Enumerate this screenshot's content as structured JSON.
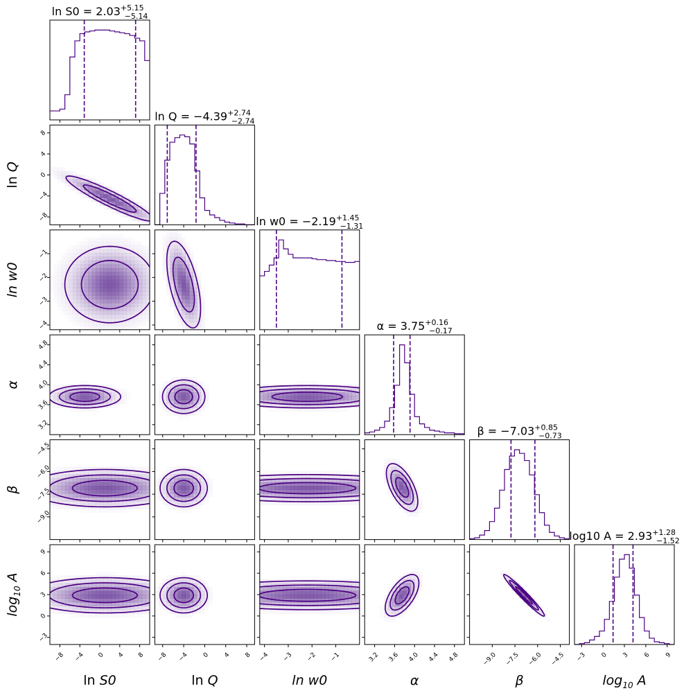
{
  "chart_data": {
    "type": "corner",
    "title": "",
    "colors": {
      "line": "#4b0082",
      "fill": "#6a3d9a"
    },
    "parameters": [
      {
        "id": "lnS0",
        "label_main": "ln ",
        "label_italic": "S0",
        "label_sub": "",
        "title_lhs": "ln S0 = 2.03",
        "title_plus": "+5.15",
        "title_minus": "−5.14",
        "range": [
          -10,
          10
        ],
        "ticks": [
          -8,
          -4,
          0,
          4,
          8
        ],
        "tick_labels": [
          "−8",
          "−4",
          "0",
          "4",
          "8"
        ],
        "median": 2.03,
        "q_lo": -3.11,
        "q_hi": 7.18,
        "hist_edges": [
          -10,
          -9,
          -8,
          -7,
          -6,
          -5,
          -4,
          -3,
          -2,
          -1,
          0,
          1,
          2,
          3,
          4,
          5,
          6,
          7,
          8,
          9,
          10
        ],
        "hist_counts": [
          0.1,
          0.1,
          0.12,
          0.28,
          0.7,
          0.88,
          0.96,
          0.98,
          0.99,
          1.0,
          1.0,
          1.0,
          0.99,
          0.98,
          0.97,
          0.96,
          0.94,
          0.91,
          0.88,
          0.66
        ]
      },
      {
        "id": "lnQ",
        "label_main": "ln ",
        "label_italic": "Q",
        "label_sub": "",
        "title_lhs": "ln Q = −4.39",
        "title_plus": "+2.74",
        "title_minus": "−2.74",
        "range": [
          -9.5,
          9.5
        ],
        "ticks": [
          -8,
          -4,
          0,
          4,
          8
        ],
        "tick_labels": [
          "−8",
          "−4",
          "0",
          "4",
          "8"
        ],
        "median": -4.39,
        "q_lo": -7.13,
        "q_hi": -1.65,
        "hist_edges": [
          -9.5,
          -8.55,
          -7.6,
          -6.65,
          -5.7,
          -4.75,
          -3.8,
          -2.85,
          -1.9,
          -0.95,
          0,
          0.95,
          1.9,
          2.85,
          3.8,
          4.75,
          5.75,
          6.65,
          7.6,
          8.55,
          9.5
        ],
        "hist_counts": [
          0.0,
          0.35,
          0.72,
          0.92,
          0.97,
          1.0,
          0.98,
          0.9,
          0.6,
          0.3,
          0.16,
          0.11,
          0.08,
          0.05,
          0.03,
          0.02,
          0.01,
          0.01,
          0.0,
          0.0
        ]
      },
      {
        "id": "lnw0",
        "label_main": "",
        "label_italic": "ln w0",
        "label_sub": "",
        "title_lhs": "ln w0 = −2.19",
        "title_plus": "+1.45",
        "title_minus": "−1.31",
        "range": [
          -4.2,
          0.0
        ],
        "ticks": [
          -4,
          -3,
          -2,
          -1
        ],
        "tick_labels": [
          "−4",
          "−3",
          "−2",
          "−1"
        ],
        "median": -2.19,
        "q_lo": -3.5,
        "q_hi": -0.74,
        "hist_edges": [
          -4.2,
          -4.0,
          -3.8,
          -3.6,
          -3.4,
          -3.2,
          -3.0,
          -2.8,
          -2.6,
          -2.4,
          -2.2,
          -2.0,
          -1.8,
          -1.6,
          -1.4,
          -1.2,
          -1.0,
          -0.8,
          -0.6,
          -0.4,
          -0.2,
          0.0
        ],
        "hist_counts": [
          0.6,
          0.65,
          0.72,
          0.8,
          1.0,
          0.9,
          0.84,
          0.8,
          0.8,
          0.8,
          0.8,
          0.79,
          0.78,
          0.78,
          0.77,
          0.77,
          0.76,
          0.76,
          0.75,
          0.75,
          0.76
        ]
      },
      {
        "id": "alpha",
        "label_main": "",
        "label_italic": "α",
        "label_sub": "",
        "title_lhs": "α = 3.75",
        "title_plus": "+0.16",
        "title_minus": "−0.17",
        "range": [
          3.0,
          5.0
        ],
        "ticks": [
          3.2,
          3.6,
          4.0,
          4.4,
          4.8
        ],
        "tick_labels": [
          "3.2",
          "3.6",
          "4.0",
          "4.4",
          "4.8"
        ],
        "median": 3.75,
        "q_lo": 3.58,
        "q_hi": 3.91,
        "hist_edges": [
          3.0,
          3.1,
          3.2,
          3.3,
          3.4,
          3.5,
          3.6,
          3.7,
          3.8,
          3.9,
          4.0,
          4.1,
          4.2,
          4.3,
          4.4,
          4.5,
          4.6,
          4.7,
          4.8,
          4.9,
          5.0
        ],
        "hist_counts": [
          0.02,
          0.03,
          0.05,
          0.08,
          0.15,
          0.3,
          0.55,
          1.0,
          0.8,
          0.45,
          0.2,
          0.12,
          0.08,
          0.05,
          0.04,
          0.03,
          0.02,
          0.02,
          0.01,
          0.01
        ]
      },
      {
        "id": "beta",
        "label_main": "",
        "label_italic": "β",
        "label_sub": "",
        "title_lhs": "β = −7.03",
        "title_plus": "+0.85",
        "title_minus": "−0.73",
        "range": [
          -10.5,
          -3.9
        ],
        "ticks": [
          -9.0,
          -7.5,
          -6.0,
          -4.5
        ],
        "tick_labels": [
          "−9.0",
          "−7.5",
          "−6.0",
          "−4.5"
        ],
        "median": -7.03,
        "q_lo": -7.76,
        "q_hi": -6.18,
        "hist_edges": [
          -10.5,
          -10.17,
          -9.84,
          -9.51,
          -9.18,
          -8.85,
          -8.52,
          -8.19,
          -7.86,
          -7.53,
          -7.2,
          -6.87,
          -6.54,
          -6.21,
          -5.88,
          -5.55,
          -5.22,
          -4.89,
          -4.56,
          -4.23,
          -3.9
        ],
        "hist_counts": [
          0.01,
          0.02,
          0.05,
          0.1,
          0.2,
          0.35,
          0.55,
          0.78,
          0.93,
          1.0,
          0.96,
          0.88,
          0.72,
          0.5,
          0.3,
          0.16,
          0.08,
          0.04,
          0.02,
          0.01
        ]
      },
      {
        "id": "log10A",
        "label_main": "",
        "label_italic": "log",
        "label_sub": "10",
        "label_after": " A",
        "title_lhs": "log10 A = 2.93",
        "title_plus": "+1.28",
        "title_minus": "−1.52",
        "range": [
          -4,
          10
        ],
        "ticks": [
          -3,
          0,
          3,
          6,
          9
        ],
        "tick_labels": [
          "−3",
          "0",
          "3",
          "6",
          "9"
        ],
        "median": 2.93,
        "q_lo": 1.41,
        "q_hi": 4.21,
        "hist_edges": [
          -4,
          -3.3,
          -2.6,
          -1.9,
          -1.2,
          -0.5,
          0.2,
          0.9,
          1.6,
          2.3,
          3.0,
          3.7,
          4.4,
          5.1,
          5.8,
          6.5,
          7.2,
          7.9,
          8.6,
          9.3,
          10
        ],
        "hist_counts": [
          0.0,
          0.01,
          0.02,
          0.05,
          0.09,
          0.15,
          0.28,
          0.48,
          0.75,
          0.95,
          1.0,
          0.85,
          0.55,
          0.3,
          0.15,
          0.07,
          0.03,
          0.02,
          0.01,
          0.0
        ]
      }
    ],
    "pairs": [
      {
        "row": 1,
        "col": 0,
        "mean": [
          2,
          -4.5
        ],
        "sd": [
          4.5,
          2.2
        ],
        "rho": -0.93,
        "levels": [
          0.5,
          0.85
        ]
      },
      {
        "row": 2,
        "col": 0,
        "mean": [
          2,
          -2.3
        ],
        "sd": [
          4.2,
          0.75
        ],
        "rho": 0.0,
        "levels": [
          0.6,
          0.9
        ]
      },
      {
        "row": 2,
        "col": 1,
        "mean": [
          -4,
          -2.3
        ],
        "sd": [
          1.5,
          0.85
        ],
        "rho": -0.55,
        "levels": [
          0.6,
          0.9
        ]
      },
      {
        "row": 3,
        "col": 0,
        "mean": [
          -3,
          3.76
        ],
        "sd": [
          3.2,
          0.1
        ],
        "rho": 0.0,
        "levels": [
          0.35,
          0.72,
          0.92
        ]
      },
      {
        "row": 3,
        "col": 1,
        "mean": [
          -4,
          3.76
        ],
        "sd": [
          1.8,
          0.15
        ],
        "rho": 0.0,
        "levels": [
          0.35,
          0.72,
          0.92
        ]
      },
      {
        "row": 3,
        "col": 2,
        "mean": [
          -2.2,
          3.76
        ],
        "sd": [
          1.6,
          0.1
        ],
        "rho": 0.0,
        "levels": [
          0.35,
          0.72,
          0.92
        ]
      },
      {
        "row": 4,
        "col": 0,
        "mean": [
          1,
          -7.1
        ],
        "sd": [
          7.0,
          0.55
        ],
        "rho": 0.0,
        "levels": [
          0.35,
          0.72,
          0.92
        ]
      },
      {
        "row": 4,
        "col": 1,
        "mean": [
          -4,
          -7.1
        ],
        "sd": [
          2.0,
          0.55
        ],
        "rho": 0.0,
        "levels": [
          0.35,
          0.72,
          0.92
        ]
      },
      {
        "row": 4,
        "col": 2,
        "mean": [
          -2.2,
          -7.1
        ],
        "sd": [
          2.2,
          0.4
        ],
        "rho": 0.0,
        "levels": [
          0.35,
          0.72,
          0.92
        ]
      },
      {
        "row": 4,
        "col": 3,
        "mean": [
          3.75,
          -7.05
        ],
        "sd": [
          0.14,
          0.7
        ],
        "rho": -0.6,
        "levels": [
          0.35,
          0.72,
          0.92
        ]
      },
      {
        "row": 5,
        "col": 0,
        "mean": [
          1,
          2.9
        ],
        "sd": [
          7.0,
          1.1
        ],
        "rho": 0.0,
        "levels": [
          0.35,
          0.72,
          0.92
        ]
      },
      {
        "row": 5,
        "col": 1,
        "mean": [
          -4,
          2.9
        ],
        "sd": [
          2.0,
          1.1
        ],
        "rho": 0.0,
        "levels": [
          0.35,
          0.72,
          0.92
        ]
      },
      {
        "row": 5,
        "col": 2,
        "mean": [
          -2.2,
          2.9
        ],
        "sd": [
          2.2,
          0.9
        ],
        "rho": 0.0,
        "levels": [
          0.35,
          0.72,
          0.92
        ]
      },
      {
        "row": 5,
        "col": 3,
        "mean": [
          3.75,
          2.9
        ],
        "sd": [
          0.15,
          1.3
        ],
        "rho": 0.6,
        "levels": [
          0.35,
          0.72,
          0.92
        ]
      },
      {
        "row": 5,
        "col": 4,
        "mean": [
          -6.9,
          2.9
        ],
        "sd": [
          0.6,
          1.3
        ],
        "rho": -0.97,
        "levels": [
          0.35,
          0.72,
          0.92
        ]
      }
    ]
  }
}
